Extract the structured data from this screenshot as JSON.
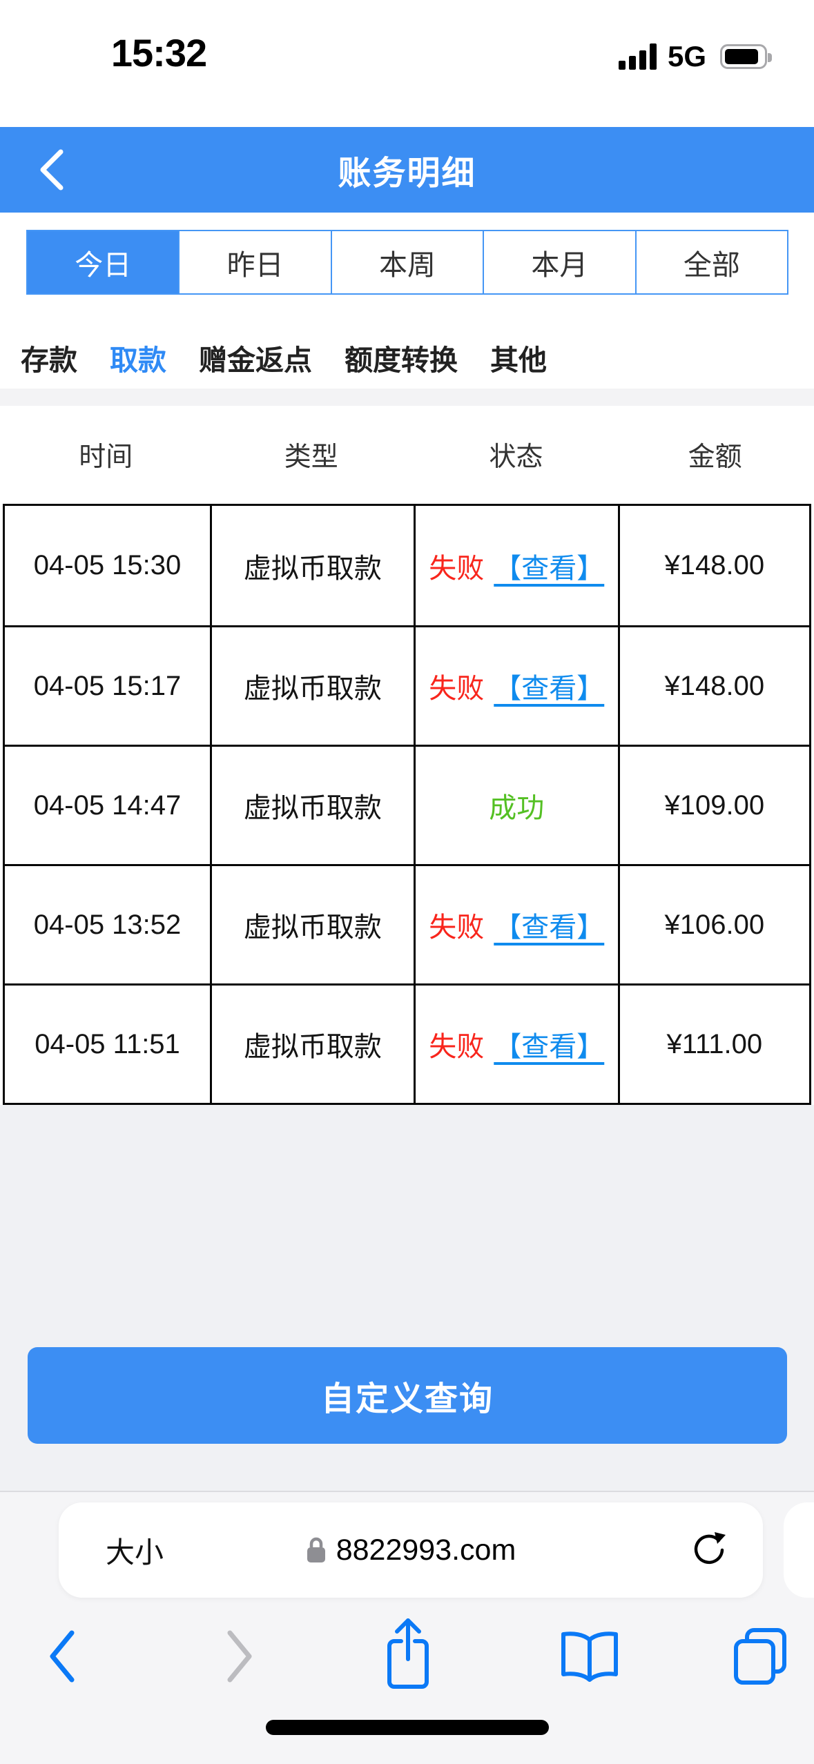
{
  "status_bar": {
    "time": "15:32",
    "network": "5G"
  },
  "header": {
    "title": "账务明细"
  },
  "period_tabs": {
    "items": [
      {
        "label": "今日",
        "active": true
      },
      {
        "label": "昨日",
        "active": false
      },
      {
        "label": "本周",
        "active": false
      },
      {
        "label": "本月",
        "active": false
      },
      {
        "label": "全部",
        "active": false
      }
    ]
  },
  "category_tabs": {
    "items": [
      {
        "label": "存款",
        "active": false
      },
      {
        "label": "取款",
        "active": true
      },
      {
        "label": "赠金返点",
        "active": false
      },
      {
        "label": "额度转换",
        "active": false
      },
      {
        "label": "其他",
        "active": false
      }
    ]
  },
  "table": {
    "columns": [
      "时间",
      "类型",
      "状态",
      "金额"
    ],
    "rows": [
      {
        "time": "04-05 15:30",
        "type": "虚拟币取款",
        "status": "失败",
        "status_state": "fail",
        "action": "【查看】",
        "amount": "¥148.00"
      },
      {
        "time": "04-05 15:17",
        "type": "虚拟币取款",
        "status": "失败",
        "status_state": "fail",
        "action": "【查看】",
        "amount": "¥148.00"
      },
      {
        "time": "04-05 14:47",
        "type": "虚拟币取款",
        "status": "成功",
        "status_state": "success",
        "action": "",
        "amount": "¥109.00"
      },
      {
        "time": "04-05 13:52",
        "type": "虚拟币取款",
        "status": "失败",
        "status_state": "fail",
        "action": "【查看】",
        "amount": "¥106.00"
      },
      {
        "time": "04-05 11:51",
        "type": "虚拟币取款",
        "status": "失败",
        "status_state": "fail",
        "action": "【查看】",
        "amount": "¥111.00"
      }
    ]
  },
  "query_button": {
    "label": "自定义查询"
  },
  "browser": {
    "text_size_label": "大小",
    "url": "8822993.com"
  },
  "colors": {
    "accent_blue": "#3c8ef3",
    "link_blue": "#0f8bee",
    "fail_red": "#f8251c",
    "success_green": "#54c023",
    "toolbar_blue": "#0b79f6"
  }
}
